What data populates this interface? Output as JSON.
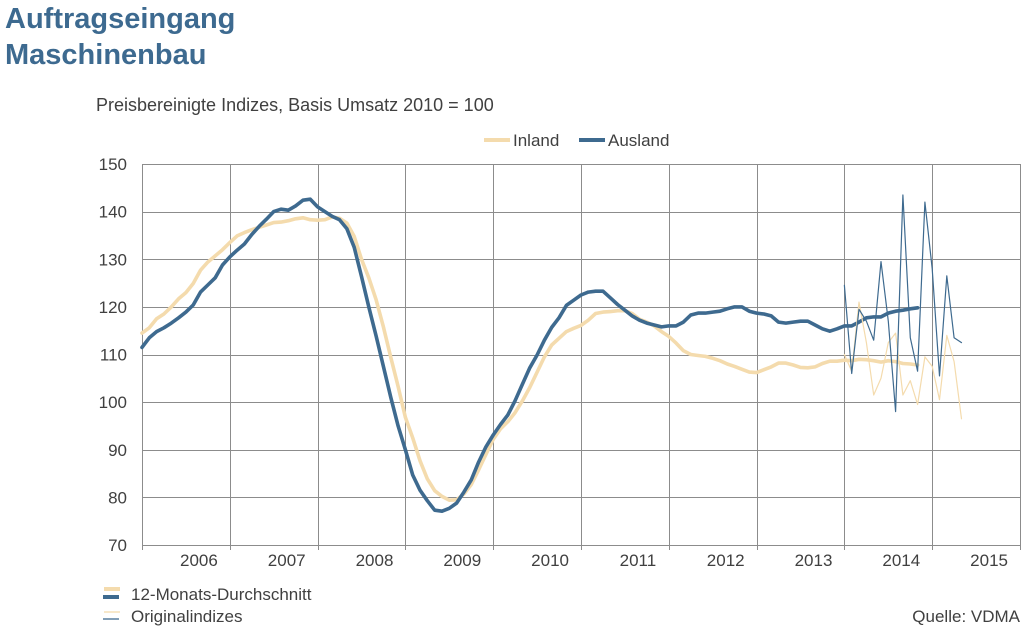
{
  "colors": {
    "title": "#3d6a90",
    "text": "#404040",
    "grid": "#8c8c8c"
  },
  "chart_data": {
    "type": "line",
    "title_lines": [
      "Auftragseingang",
      "Maschinenbau"
    ],
    "subtitle": "Preisbereinigte Indizes, Basis Umsatz 2010 = 100",
    "xlabel": "",
    "ylabel": "",
    "ylim": [
      70,
      150
    ],
    "yticks": [
      70,
      80,
      90,
      100,
      110,
      120,
      130,
      140,
      150
    ],
    "xtick_labels": [
      "2006",
      "2007",
      "2008",
      "2009",
      "2010",
      "2011",
      "2012",
      "2013",
      "2014",
      "2015"
    ],
    "grid": true,
    "legend_placement": "top",
    "line_style_labels": {
      "avg_12m": "12-Monats-Durchschnitt",
      "original": "Originalindizes"
    },
    "source": "Quelle: VDMA",
    "x": [
      "2006-01",
      "2006-02",
      "2006-03",
      "2006-04",
      "2006-05",
      "2006-06",
      "2006-07",
      "2006-08",
      "2006-09",
      "2006-10",
      "2006-11",
      "2006-12",
      "2007-01",
      "2007-02",
      "2007-03",
      "2007-04",
      "2007-05",
      "2007-06",
      "2007-07",
      "2007-08",
      "2007-09",
      "2007-10",
      "2007-11",
      "2007-12",
      "2008-01",
      "2008-02",
      "2008-03",
      "2008-04",
      "2008-05",
      "2008-06",
      "2008-07",
      "2008-08",
      "2008-09",
      "2008-10",
      "2008-11",
      "2008-12",
      "2009-01",
      "2009-02",
      "2009-03",
      "2009-04",
      "2009-05",
      "2009-06",
      "2009-07",
      "2009-08",
      "2009-09",
      "2009-10",
      "2009-11",
      "2009-12",
      "2010-01",
      "2010-02",
      "2010-03",
      "2010-04",
      "2010-05",
      "2010-06",
      "2010-07",
      "2010-08",
      "2010-09",
      "2010-10",
      "2010-11",
      "2010-12",
      "2011-01",
      "2011-02",
      "2011-03",
      "2011-04",
      "2011-05",
      "2011-06",
      "2011-07",
      "2011-08",
      "2011-09",
      "2011-10",
      "2011-11",
      "2011-12",
      "2012-01",
      "2012-02",
      "2012-03",
      "2012-04",
      "2012-05",
      "2012-06",
      "2012-07",
      "2012-08",
      "2012-09",
      "2012-10",
      "2012-11",
      "2012-12",
      "2013-01",
      "2013-02",
      "2013-03",
      "2013-04",
      "2013-05",
      "2013-06",
      "2013-07",
      "2013-08",
      "2013-09",
      "2013-10",
      "2013-11",
      "2013-12",
      "2014-01",
      "2014-02",
      "2014-03",
      "2014-04",
      "2014-05",
      "2014-06",
      "2014-07",
      "2014-08",
      "2014-09",
      "2014-10",
      "2014-11",
      "2014-12",
      "2015-01",
      "2015-02",
      "2015-03",
      "2015-04",
      "2015-05"
    ],
    "series": [
      {
        "name": "Inland",
        "color": "#f4dbad",
        "avg_12m": [
          114.5,
          115.6,
          117.5,
          118.5,
          120.0,
          121.7,
          123.0,
          124.9,
          127.7,
          129.4,
          130.7,
          132.0,
          133.5,
          134.9,
          135.6,
          136.2,
          136.7,
          137.2,
          137.7,
          137.8,
          138.1,
          138.5,
          138.7,
          138.3,
          138.2,
          138.3,
          138.9,
          138.6,
          137.6,
          134.8,
          130.0,
          126.1,
          121.5,
          115.8,
          109.4,
          103.3,
          96.8,
          92.5,
          87.7,
          83.9,
          81.4,
          80.2,
          79.4,
          79.5,
          80.7,
          82.7,
          85.8,
          89.0,
          92.2,
          94.4,
          95.9,
          97.8,
          100.3,
          103.1,
          106.3,
          109.5,
          112.0,
          113.4,
          114.8,
          115.5,
          116.1,
          117.2,
          118.6,
          118.9,
          119.0,
          119.2,
          119.2,
          118.6,
          117.4,
          116.8,
          116.0,
          114.8,
          113.8,
          112.4,
          110.8,
          110.0,
          109.8,
          109.6,
          109.2,
          108.7,
          108.0,
          107.5,
          106.9,
          106.3,
          106.2,
          106.8,
          107.4,
          108.2,
          108.2,
          107.8,
          107.3,
          107.2,
          107.4,
          108.1,
          108.6,
          108.6,
          108.8,
          108.7,
          109.0,
          108.9,
          108.7,
          108.4,
          108.7,
          108.5,
          108.1,
          108.0,
          107.8,
          null,
          null,
          null,
          null,
          null,
          null
        ],
        "original": [
          null,
          null,
          null,
          null,
          null,
          null,
          null,
          null,
          null,
          null,
          null,
          null,
          null,
          null,
          null,
          null,
          null,
          null,
          null,
          null,
          null,
          null,
          null,
          null,
          null,
          null,
          null,
          null,
          null,
          null,
          null,
          null,
          null,
          null,
          null,
          null,
          null,
          null,
          null,
          null,
          null,
          null,
          null,
          null,
          null,
          null,
          null,
          null,
          null,
          null,
          null,
          null,
          null,
          null,
          null,
          null,
          null,
          null,
          null,
          null,
          null,
          null,
          null,
          null,
          null,
          null,
          null,
          null,
          null,
          null,
          null,
          null,
          null,
          null,
          null,
          null,
          null,
          null,
          null,
          null,
          null,
          null,
          null,
          null,
          null,
          null,
          null,
          null,
          null,
          null,
          null,
          null,
          null,
          null,
          null,
          null,
          110.0,
          106.5,
          121.0,
          112.5,
          101.5,
          105.0,
          112.5,
          114.5,
          101.5,
          104.5,
          99.5,
          109.5,
          107.5,
          100.5,
          114.0,
          108.5,
          96.5
        ]
      },
      {
        "name": "Ausland",
        "color": "#3e6a8f",
        "avg_12m": [
          111.5,
          113.5,
          114.8,
          115.6,
          116.6,
          117.7,
          118.9,
          120.4,
          123.1,
          124.6,
          126.1,
          128.8,
          130.5,
          131.9,
          133.2,
          135.2,
          136.9,
          138.4,
          140.0,
          140.5,
          140.3,
          141.2,
          142.4,
          142.6,
          141.0,
          140.0,
          139.0,
          138.3,
          136.4,
          132.5,
          126.4,
          120.0,
          113.9,
          107.5,
          101.0,
          95.0,
          90.0,
          84.7,
          81.5,
          79.3,
          77.3,
          77.1,
          77.7,
          78.8,
          81.1,
          83.7,
          87.4,
          90.6,
          93.1,
          95.3,
          97.3,
          100.3,
          103.8,
          107.2,
          109.9,
          113.0,
          115.7,
          117.7,
          120.3,
          121.4,
          122.5,
          123.1,
          123.3,
          123.3,
          121.9,
          120.5,
          119.3,
          118.1,
          117.2,
          116.6,
          116.2,
          115.8,
          116.0,
          116.0,
          116.8,
          118.3,
          118.7,
          118.7,
          118.9,
          119.1,
          119.6,
          120.0,
          120.0,
          119.1,
          118.7,
          118.5,
          118.1,
          116.8,
          116.6,
          116.8,
          117.0,
          117.0,
          116.2,
          115.4,
          114.9,
          115.4,
          116.0,
          116.0,
          116.8,
          117.7,
          117.9,
          117.9,
          118.7,
          119.1,
          119.3,
          119.6,
          119.8,
          null,
          null,
          null,
          null,
          null,
          null
        ],
        "original": [
          null,
          null,
          null,
          null,
          null,
          null,
          null,
          null,
          null,
          null,
          null,
          null,
          null,
          null,
          null,
          null,
          null,
          null,
          null,
          null,
          null,
          null,
          null,
          null,
          null,
          null,
          null,
          null,
          null,
          null,
          null,
          null,
          null,
          null,
          null,
          null,
          null,
          null,
          null,
          null,
          null,
          null,
          null,
          null,
          null,
          null,
          null,
          null,
          null,
          null,
          null,
          null,
          null,
          null,
          null,
          null,
          null,
          null,
          null,
          null,
          null,
          null,
          null,
          null,
          null,
          null,
          null,
          null,
          null,
          null,
          null,
          null,
          null,
          null,
          null,
          null,
          null,
          null,
          null,
          null,
          null,
          null,
          null,
          null,
          null,
          null,
          null,
          null,
          null,
          null,
          null,
          null,
          null,
          null,
          null,
          null,
          124.5,
          106.0,
          119.5,
          117.0,
          113.0,
          129.5,
          117.0,
          98.0,
          143.5,
          113.5,
          106.5,
          142.0,
          128.0,
          105.5,
          126.5,
          113.5,
          112.5
        ]
      }
    ]
  }
}
